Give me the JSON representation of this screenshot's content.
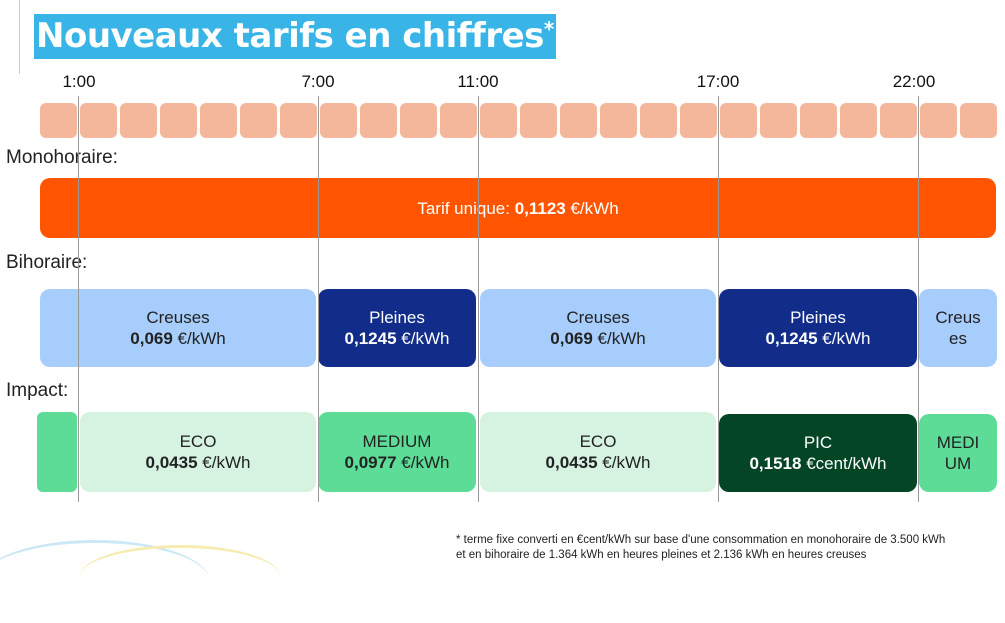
{
  "title": "Nouveaux tarifs en chiffres",
  "title_mark": "*",
  "hours": [
    "1:00",
    "7:00",
    "11:00",
    "17:00",
    "22:00"
  ],
  "labels": {
    "mono": "Monohoraire:",
    "bi": "Bihoraire:",
    "impact": "Impact:"
  },
  "mono": {
    "prefix": "Tarif unique: ",
    "value": "0,1123",
    "unit": " €/kWh"
  },
  "bihoraire": [
    {
      "name": "Creuses",
      "value": "0,069",
      "unit": " €/kWh"
    },
    {
      "name": "Pleines",
      "value": "0,1245",
      "unit": " €/kWh"
    },
    {
      "name": "Creuses",
      "value": "0,069",
      "unit": " €/kWh"
    },
    {
      "name": "Pleines",
      "value": "0,1245",
      "unit": " €/kWh"
    },
    {
      "name": "Creus es"
    }
  ],
  "impact": [
    {
      "name": "ECO",
      "value": "0,0435",
      "unit": " €/kWh"
    },
    {
      "name": "MEDIUM",
      "value": "0,0977",
      "unit": " €/kWh"
    },
    {
      "name": "ECO",
      "value": "0,0435",
      "unit": " €/kWh"
    },
    {
      "name": "PIC",
      "value": "0,1518",
      "unit": " €cent/kWh"
    },
    {
      "name": "MEDI UM"
    }
  ],
  "footnote": [
    "* terme fixe converti en €cent/kWh sur base d'une consommation en monohoraire de 3.500 kWh",
    "et en bihoraire de 1.364 kWh en heures pleines et 2.136 kWh en heures creuses"
  ],
  "colors": {
    "accent": "#38b4e6",
    "mono": "#ff5500",
    "creuses": "#a6cdfb",
    "pleines": "#122c8a",
    "eco": "#d6f2e1",
    "medium": "#5ddc97",
    "pic": "#044526"
  }
}
